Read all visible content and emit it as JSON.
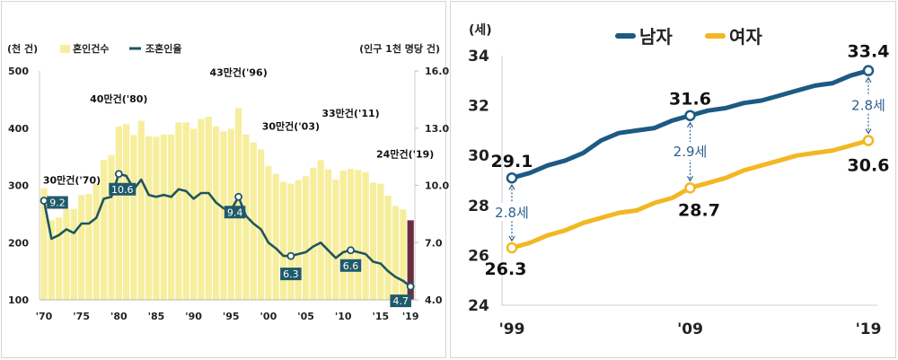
{
  "chart_data": [
    {
      "type": "bar+line",
      "left_unit": "(천 건)",
      "right_unit": "(인구 1천 명당 건)",
      "legend": [
        "혼인건수",
        "조혼인율"
      ],
      "legend_placement": "top-left",
      "yticks_left": [
        "500",
        "400",
        "300",
        "200",
        "100"
      ],
      "yticks_right": [
        "16.0",
        "13.0",
        "10.0",
        "7.0",
        "4.0"
      ],
      "ylim_left": [
        100,
        500
      ],
      "ylim_right": [
        4.0,
        16.0
      ],
      "xticks": [
        "'70",
        "'75",
        "'80",
        "'85",
        "'90",
        "'95",
        "'00",
        "'05",
        "'10",
        "'15",
        "'19"
      ],
      "years": [
        1970,
        1971,
        1972,
        1973,
        1974,
        1975,
        1976,
        1977,
        1978,
        1979,
        1980,
        1981,
        1982,
        1983,
        1984,
        1985,
        1986,
        1987,
        1988,
        1989,
        1990,
        1991,
        1992,
        1993,
        1994,
        1995,
        1996,
        1997,
        1998,
        1999,
        2000,
        2001,
        2002,
        2003,
        2004,
        2005,
        2006,
        2007,
        2008,
        2009,
        2010,
        2011,
        2012,
        2013,
        2014,
        2015,
        2016,
        2017,
        2018,
        2019
      ],
      "marriages_thousand": [
        295,
        239,
        244,
        259,
        259,
        283,
        285,
        303,
        344,
        353,
        403,
        407,
        388,
        413,
        386,
        385,
        389,
        389,
        410,
        410,
        399,
        416,
        420,
        403,
        394,
        399,
        435,
        389,
        375,
        363,
        334,
        320,
        306,
        303,
        309,
        316,
        331,
        344,
        328,
        310,
        326,
        329,
        327,
        323,
        305,
        303,
        282,
        264,
        258,
        239
      ],
      "crude_marriage_rate": [
        9.2,
        7.2,
        7.4,
        7.7,
        7.5,
        8.0,
        8.0,
        8.3,
        9.3,
        9.4,
        10.6,
        10.5,
        9.8,
        10.3,
        9.5,
        9.4,
        9.5,
        9.4,
        9.8,
        9.7,
        9.3,
        9.6,
        9.6,
        9.1,
        8.8,
        8.7,
        9.4,
        8.4,
        8.0,
        7.7,
        7.0,
        6.7,
        6.3,
        6.3,
        6.4,
        6.5,
        6.8,
        7.0,
        6.6,
        6.2,
        6.5,
        6.6,
        6.5,
        6.4,
        6.0,
        5.9,
        5.5,
        5.2,
        5.0,
        4.7
      ],
      "bar_annotations": [
        {
          "year": 1970,
          "text": "30만건('70)"
        },
        {
          "year": 1980,
          "text": "40만건('80)"
        },
        {
          "year": 1996,
          "text": "43만건('96)"
        },
        {
          "year": 2003,
          "text": "30만건('03)"
        },
        {
          "year": 2011,
          "text": "33만건('11)"
        },
        {
          "year": 2019,
          "text": "24만건('19)"
        }
      ],
      "rate_labels": [
        {
          "year": 1970,
          "text": "9.2"
        },
        {
          "year": 1980,
          "text": "10.6"
        },
        {
          "year": 1996,
          "text": "9.4"
        },
        {
          "year": 2003,
          "text": "6.3"
        },
        {
          "year": 2011,
          "text": "6.6"
        },
        {
          "year": 2019,
          "text": "4.7"
        }
      ],
      "colors": {
        "bar": "#f6ee9c",
        "bar_highlight": "#6b2d3e",
        "line": "#1f5560"
      }
    },
    {
      "type": "line",
      "unit": "(세)",
      "legend": [
        "남자",
        "여자"
      ],
      "legend_placement": "top-center",
      "yticks": [
        "34",
        "32",
        "30",
        "28",
        "26",
        "24"
      ],
      "ylim": [
        24,
        34
      ],
      "xticks": [
        "'99",
        "'09",
        "'19"
      ],
      "years": [
        1999,
        2000,
        2001,
        2002,
        2003,
        2004,
        2005,
        2006,
        2007,
        2008,
        2009,
        2010,
        2011,
        2012,
        2013,
        2014,
        2015,
        2016,
        2017,
        2018,
        2019
      ],
      "series": [
        {
          "name": "남자",
          "values": [
            29.1,
            29.3,
            29.6,
            29.8,
            30.1,
            30.6,
            30.9,
            31.0,
            31.1,
            31.4,
            31.6,
            31.8,
            31.9,
            32.1,
            32.2,
            32.4,
            32.6,
            32.8,
            32.9,
            33.2,
            33.4
          ],
          "color": "#1d5a83"
        },
        {
          "name": "여자",
          "values": [
            26.3,
            26.5,
            26.8,
            27.0,
            27.3,
            27.5,
            27.7,
            27.8,
            28.1,
            28.3,
            28.7,
            28.9,
            29.1,
            29.4,
            29.6,
            29.8,
            30.0,
            30.1,
            30.2,
            30.4,
            30.6
          ],
          "color": "#f2b823"
        }
      ],
      "point_labels": {
        "남자": [
          {
            "year": 1999,
            "text": "29.1"
          },
          {
            "year": 2009,
            "text": "31.6"
          },
          {
            "year": 2019,
            "text": "33.4"
          }
        ],
        "여자": [
          {
            "year": 1999,
            "text": "26.3"
          },
          {
            "year": 2009,
            "text": "28.7"
          },
          {
            "year": 2019,
            "text": "30.6"
          }
        ]
      },
      "gap_labels": [
        {
          "year": 1999,
          "text": "2.8세"
        },
        {
          "year": 2009,
          "text": "2.9세"
        },
        {
          "year": 2019,
          "text": "2.8세"
        }
      ]
    }
  ]
}
